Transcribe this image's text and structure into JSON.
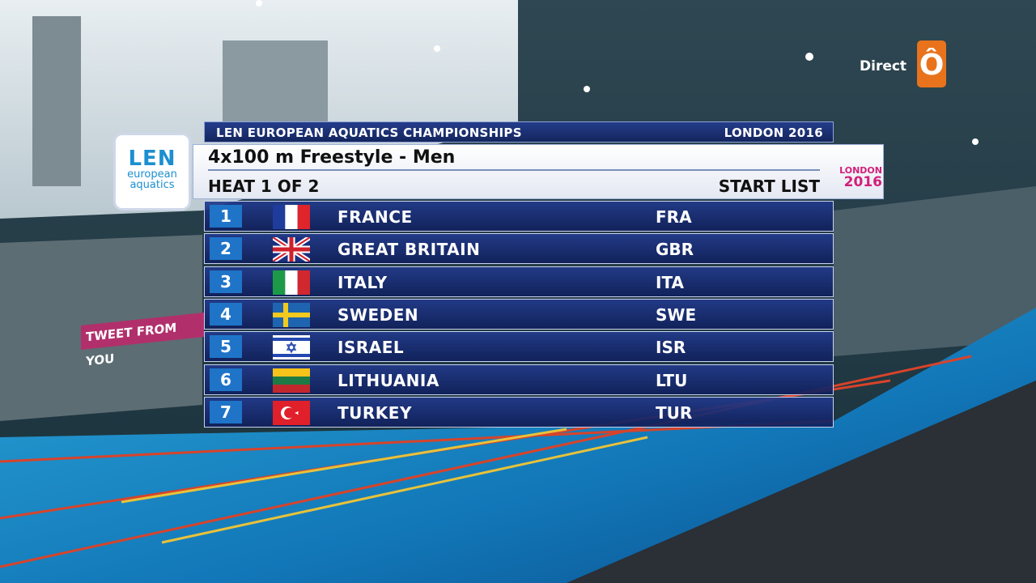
{
  "broadcast": {
    "channel": "Direct",
    "channel_logo": "Ô"
  },
  "banner": {
    "event": "LEN EUROPEAN AQUATICS CHAMPIONSHIPS",
    "location": "LONDON 2016"
  },
  "logos": {
    "len": [
      "LEN",
      "european",
      "aquatics"
    ],
    "london": [
      "LONDON",
      "2016"
    ]
  },
  "title": "4x100 m Freestyle - Men",
  "heat": "HEAT 1 OF 2",
  "list": "START LIST",
  "lanes": [
    {
      "lane": 1,
      "country": "FRANCE",
      "code": "FRA"
    },
    {
      "lane": 2,
      "country": "GREAT BRITAIN",
      "code": "GBR"
    },
    {
      "lane": 3,
      "country": "ITALY",
      "code": "ITA"
    },
    {
      "lane": 4,
      "country": "SWEDEN",
      "code": "SWE"
    },
    {
      "lane": 5,
      "country": "ISRAEL",
      "code": "ISR"
    },
    {
      "lane": 6,
      "country": "LITHUANIA",
      "code": "LTU"
    },
    {
      "lane": 7,
      "country": "TURKEY",
      "code": "TUR"
    }
  ],
  "venue_banner": "TWEET FROM YOU"
}
